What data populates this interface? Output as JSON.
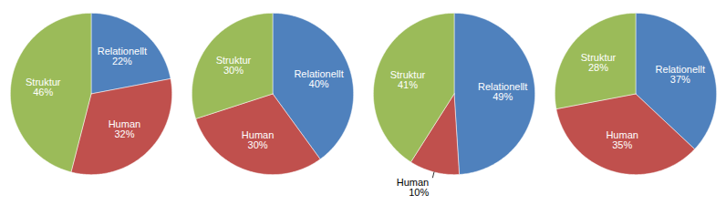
{
  "chart_data": [
    {
      "type": "pie",
      "categories": [
        "Relationellt",
        "Human",
        "Struktur"
      ],
      "values": [
        22,
        32,
        46
      ],
      "value_labels": [
        "22%",
        "32%",
        "46%"
      ],
      "colors": [
        "#4f81bd",
        "#c0504d",
        "#9bbb59"
      ],
      "data_labels": true
    },
    {
      "type": "pie",
      "categories": [
        "Relationellt",
        "Human",
        "Struktur"
      ],
      "values": [
        40,
        30,
        30
      ],
      "value_labels": [
        "40%",
        "30%",
        "30%"
      ],
      "colors": [
        "#4f81bd",
        "#c0504d",
        "#9bbb59"
      ],
      "data_labels": true
    },
    {
      "type": "pie",
      "categories": [
        "Relationellt",
        "Human",
        "Struktur"
      ],
      "values": [
        49,
        10,
        41
      ],
      "value_labels": [
        "49%",
        "10%",
        "41%"
      ],
      "colors": [
        "#4f81bd",
        "#c0504d",
        "#9bbb59"
      ],
      "data_labels": true
    },
    {
      "type": "pie",
      "categories": [
        "Relationellt",
        "Human",
        "Struktur"
      ],
      "values": [
        37,
        35,
        28
      ],
      "value_labels": [
        "37%",
        "35%",
        "28%"
      ],
      "colors": [
        "#4f81bd",
        "#c0504d",
        "#9bbb59"
      ],
      "data_labels": true
    }
  ]
}
